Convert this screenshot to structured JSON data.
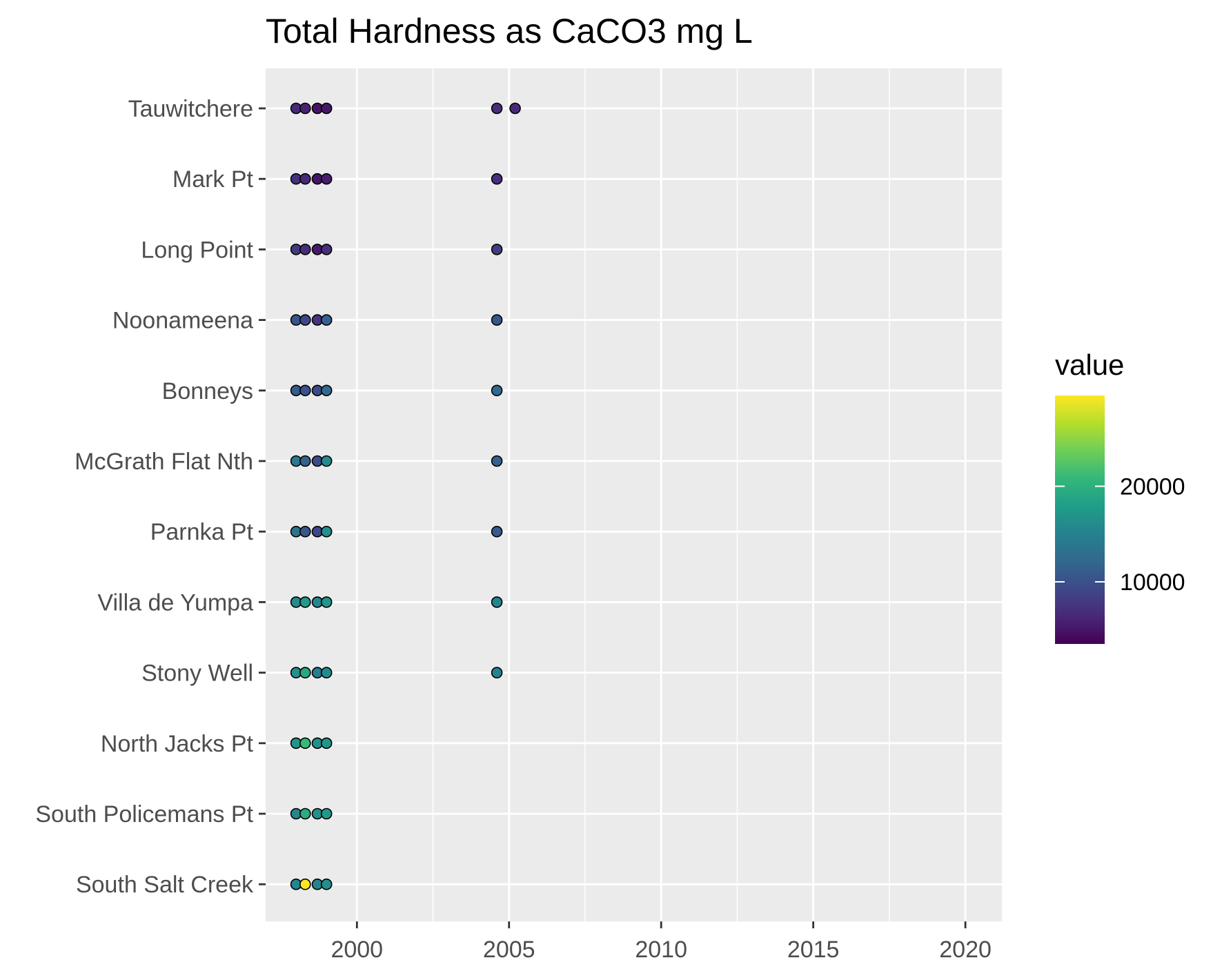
{
  "chart_data": {
    "type": "scatter",
    "title": "Total Hardness as CaCO3 mg L",
    "xlabel": "",
    "ylabel": "",
    "xlim": [
      1997,
      2021.2
    ],
    "xticks": [
      2000,
      2005,
      2010,
      2015,
      2020
    ],
    "grid": true,
    "categories": [
      "Tauwitchere",
      "Mark Pt",
      "Long Point",
      "Noonameena",
      "Bonneys",
      "McGrath Flat Nth",
      "Parnka Pt",
      "Villa de Yumpa",
      "Stony Well",
      "North Jacks Pt",
      "South Policemans Pt",
      "South Salt Creek"
    ],
    "color_scale": {
      "name": "value",
      "palette": "viridis",
      "limits": [
        3500,
        29500
      ],
      "breaks": [
        10000,
        20000
      ],
      "break_labels": [
        "10000",
        "20000"
      ],
      "colors": [
        "#440154",
        "#482878",
        "#3e4989",
        "#31688e",
        "#26828e",
        "#1f9e89",
        "#35b779",
        "#6ece58",
        "#b5de2b",
        "#fde725"
      ]
    },
    "points": [
      {
        "site": "Tauwitchere",
        "x": 1998.0,
        "value": 6500
      },
      {
        "site": "Tauwitchere",
        "x": 1998.3,
        "value": 6000
      },
      {
        "site": "Tauwitchere",
        "x": 1998.7,
        "value": 4800
      },
      {
        "site": "Tauwitchere",
        "x": 1999.0,
        "value": 5200
      },
      {
        "site": "Tauwitchere",
        "x": 2004.6,
        "value": 6800
      },
      {
        "site": "Tauwitchere",
        "x": 2005.2,
        "value": 6500
      },
      {
        "site": "Mark Pt",
        "x": 1998.0,
        "value": 7200
      },
      {
        "site": "Mark Pt",
        "x": 1998.3,
        "value": 6500
      },
      {
        "site": "Mark Pt",
        "x": 1998.7,
        "value": 5000
      },
      {
        "site": "Mark Pt",
        "x": 1999.0,
        "value": 5600
      },
      {
        "site": "Mark Pt",
        "x": 2004.6,
        "value": 7000
      },
      {
        "site": "Long Point",
        "x": 1998.0,
        "value": 8000
      },
      {
        "site": "Long Point",
        "x": 1998.3,
        "value": 6800
      },
      {
        "site": "Long Point",
        "x": 1998.7,
        "value": 5300
      },
      {
        "site": "Long Point",
        "x": 1999.0,
        "value": 7000
      },
      {
        "site": "Long Point",
        "x": 2004.6,
        "value": 8300
      },
      {
        "site": "Noonameena",
        "x": 1998.0,
        "value": 10500
      },
      {
        "site": "Noonameena",
        "x": 1998.3,
        "value": 9000
      },
      {
        "site": "Noonameena",
        "x": 1998.7,
        "value": 7400
      },
      {
        "site": "Noonameena",
        "x": 1999.0,
        "value": 11500
      },
      {
        "site": "Noonameena",
        "x": 2004.6,
        "value": 10500
      },
      {
        "site": "Bonneys",
        "x": 1998.0,
        "value": 11000
      },
      {
        "site": "Bonneys",
        "x": 1998.3,
        "value": 10000
      },
      {
        "site": "Bonneys",
        "x": 1998.7,
        "value": 9500
      },
      {
        "site": "Bonneys",
        "x": 1999.0,
        "value": 12500
      },
      {
        "site": "Bonneys",
        "x": 2004.6,
        "value": 12500
      },
      {
        "site": "McGrath Flat Nth",
        "x": 1998.0,
        "value": 14000
      },
      {
        "site": "McGrath Flat Nth",
        "x": 1998.3,
        "value": 11500
      },
      {
        "site": "McGrath Flat Nth",
        "x": 1998.7,
        "value": 9500
      },
      {
        "site": "McGrath Flat Nth",
        "x": 1999.0,
        "value": 16000
      },
      {
        "site": "McGrath Flat Nth",
        "x": 2004.6,
        "value": 11500
      },
      {
        "site": "Parnka Pt",
        "x": 1998.0,
        "value": 13500
      },
      {
        "site": "Parnka Pt",
        "x": 1998.3,
        "value": 10500
      },
      {
        "site": "Parnka Pt",
        "x": 1998.7,
        "value": 9000
      },
      {
        "site": "Parnka Pt",
        "x": 1999.0,
        "value": 16500
      },
      {
        "site": "Parnka Pt",
        "x": 2004.6,
        "value": 11000
      },
      {
        "site": "Villa de Yumpa",
        "x": 1998.0,
        "value": 16000
      },
      {
        "site": "Villa de Yumpa",
        "x": 1998.3,
        "value": 17500
      },
      {
        "site": "Villa de Yumpa",
        "x": 1998.7,
        "value": 15500
      },
      {
        "site": "Villa de Yumpa",
        "x": 1999.0,
        "value": 17000
      },
      {
        "site": "Villa de Yumpa",
        "x": 2004.6,
        "value": 15000
      },
      {
        "site": "Stony Well",
        "x": 1998.0,
        "value": 16500
      },
      {
        "site": "Stony Well",
        "x": 1998.3,
        "value": 19000
      },
      {
        "site": "Stony Well",
        "x": 1998.7,
        "value": 14500
      },
      {
        "site": "Stony Well",
        "x": 1999.0,
        "value": 16000
      },
      {
        "site": "Stony Well",
        "x": 2004.6,
        "value": 15000
      },
      {
        "site": "North Jacks Pt",
        "x": 1998.0,
        "value": 17000
      },
      {
        "site": "North Jacks Pt",
        "x": 1998.3,
        "value": 21000
      },
      {
        "site": "North Jacks Pt",
        "x": 1998.7,
        "value": 16500
      },
      {
        "site": "North Jacks Pt",
        "x": 1999.0,
        "value": 17000
      },
      {
        "site": "South Policemans Pt",
        "x": 1998.0,
        "value": 15500
      },
      {
        "site": "South Policemans Pt",
        "x": 1998.3,
        "value": 19500
      },
      {
        "site": "South Policemans Pt",
        "x": 1998.7,
        "value": 16500
      },
      {
        "site": "South Policemans Pt",
        "x": 1999.0,
        "value": 17500
      },
      {
        "site": "South Salt Creek",
        "x": 1998.0,
        "value": 15500
      },
      {
        "site": "South Salt Creek",
        "x": 1998.3,
        "value": 29500
      },
      {
        "site": "South Salt Creek",
        "x": 1998.7,
        "value": 15000
      },
      {
        "site": "South Salt Creek",
        "x": 1999.0,
        "value": 16500
      }
    ]
  }
}
